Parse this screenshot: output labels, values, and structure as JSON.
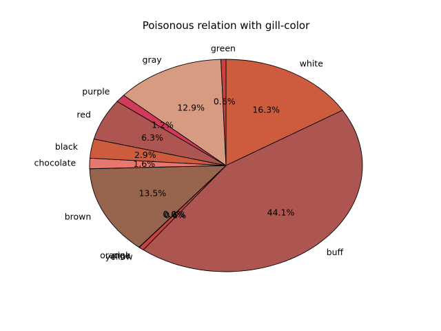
{
  "chart_data": {
    "type": "pie",
    "title": "Poisonous relation with gill-color",
    "slices": [
      {
        "label": "white",
        "pct_label": "16.3%",
        "value": 16.3,
        "color": "#cc5c3d"
      },
      {
        "label": "buff",
        "pct_label": "44.1%",
        "value": 44.1,
        "color": "#ad5550"
      },
      {
        "label": "yellow",
        "pct_label": "0.6%",
        "value": 0.6,
        "color": "#c94140"
      },
      {
        "label": "pink",
        "pct_label": "0.0%",
        "value": 0.02,
        "color": "#d23a5c"
      },
      {
        "label": "orange",
        "pct_label": "0.0%",
        "value": 0.02,
        "color": "#d6724c"
      },
      {
        "label": "brown",
        "pct_label": "13.5%",
        "value": 13.5,
        "color": "#97654d"
      },
      {
        "label": "chocolate",
        "pct_label": "1.6%",
        "value": 1.6,
        "color": "#e8776e"
      },
      {
        "label": "black",
        "pct_label": "2.9%",
        "value": 2.9,
        "color": "#cc5c3d"
      },
      {
        "label": "red",
        "pct_label": "6.3%",
        "value": 6.3,
        "color": "#ad5550"
      },
      {
        "label": "purple",
        "pct_label": "1.2%",
        "value": 1.2,
        "color": "#d23a5c"
      },
      {
        "label": "gray",
        "pct_label": "12.9%",
        "value": 12.9,
        "color": "#d79b82"
      },
      {
        "label": "green",
        "pct_label": "0.6%",
        "value": 0.6,
        "color": "#c94140"
      }
    ],
    "start_angle_deg": 90,
    "direction": "clockwise",
    "edge_color": "#000000"
  }
}
